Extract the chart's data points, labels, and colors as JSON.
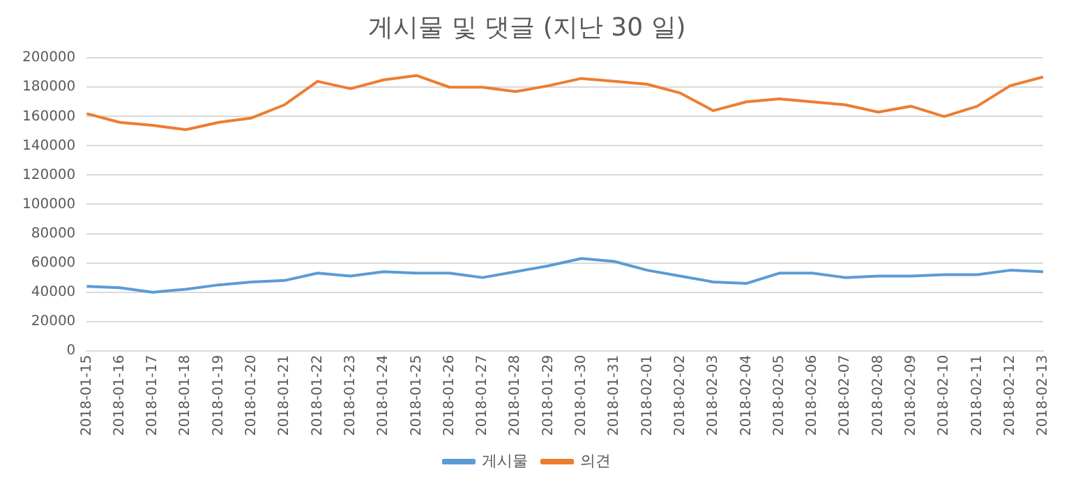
{
  "chart_data": {
    "type": "line",
    "title": "게시물 및 댓글 (지난 30 일)",
    "categories": [
      "2018-01-15",
      "2018-01-16",
      "2018-01-17",
      "2018-01-18",
      "2018-01-19",
      "2018-01-20",
      "2018-01-21",
      "2018-01-22",
      "2018-01-23",
      "2018-01-24",
      "2018-01-25",
      "2018-01-26",
      "2018-01-27",
      "2018-01-28",
      "2018-01-29",
      "2018-01-30",
      "2018-01-31",
      "2018-02-01",
      "2018-02-02",
      "2018-02-03",
      "2018-02-04",
      "2018-02-05",
      "2018-02-06",
      "2018-02-07",
      "2018-02-08",
      "2018-02-09",
      "2018-02-10",
      "2018-02-11",
      "2018-02-12",
      "2018-02-13"
    ],
    "series": [
      {
        "name": "게시물",
        "color": "#5b9bd5",
        "values": [
          44000,
          43000,
          40000,
          42000,
          45000,
          47000,
          48000,
          53000,
          51000,
          54000,
          53000,
          53000,
          50000,
          54000,
          58000,
          63000,
          61000,
          55000,
          51000,
          47000,
          46000,
          53000,
          53000,
          50000,
          51000,
          51000,
          52000,
          52000,
          55000,
          54000
        ]
      },
      {
        "name": "의견",
        "color": "#ed7d31",
        "values": [
          162000,
          156000,
          154000,
          151000,
          156000,
          159000,
          168000,
          184000,
          179000,
          185000,
          188000,
          180000,
          180000,
          177000,
          181000,
          186000,
          184000,
          182000,
          176000,
          164000,
          170000,
          172000,
          170000,
          168000,
          163000,
          167000,
          160000,
          167000,
          181000,
          187000
        ]
      }
    ],
    "ylim": [
      0,
      200000
    ],
    "yticks": [
      0,
      20000,
      40000,
      60000,
      80000,
      100000,
      120000,
      140000,
      160000,
      180000,
      200000
    ],
    "grid": "y",
    "legend": "bottom",
    "marker": "none",
    "line_style": "solid"
  }
}
